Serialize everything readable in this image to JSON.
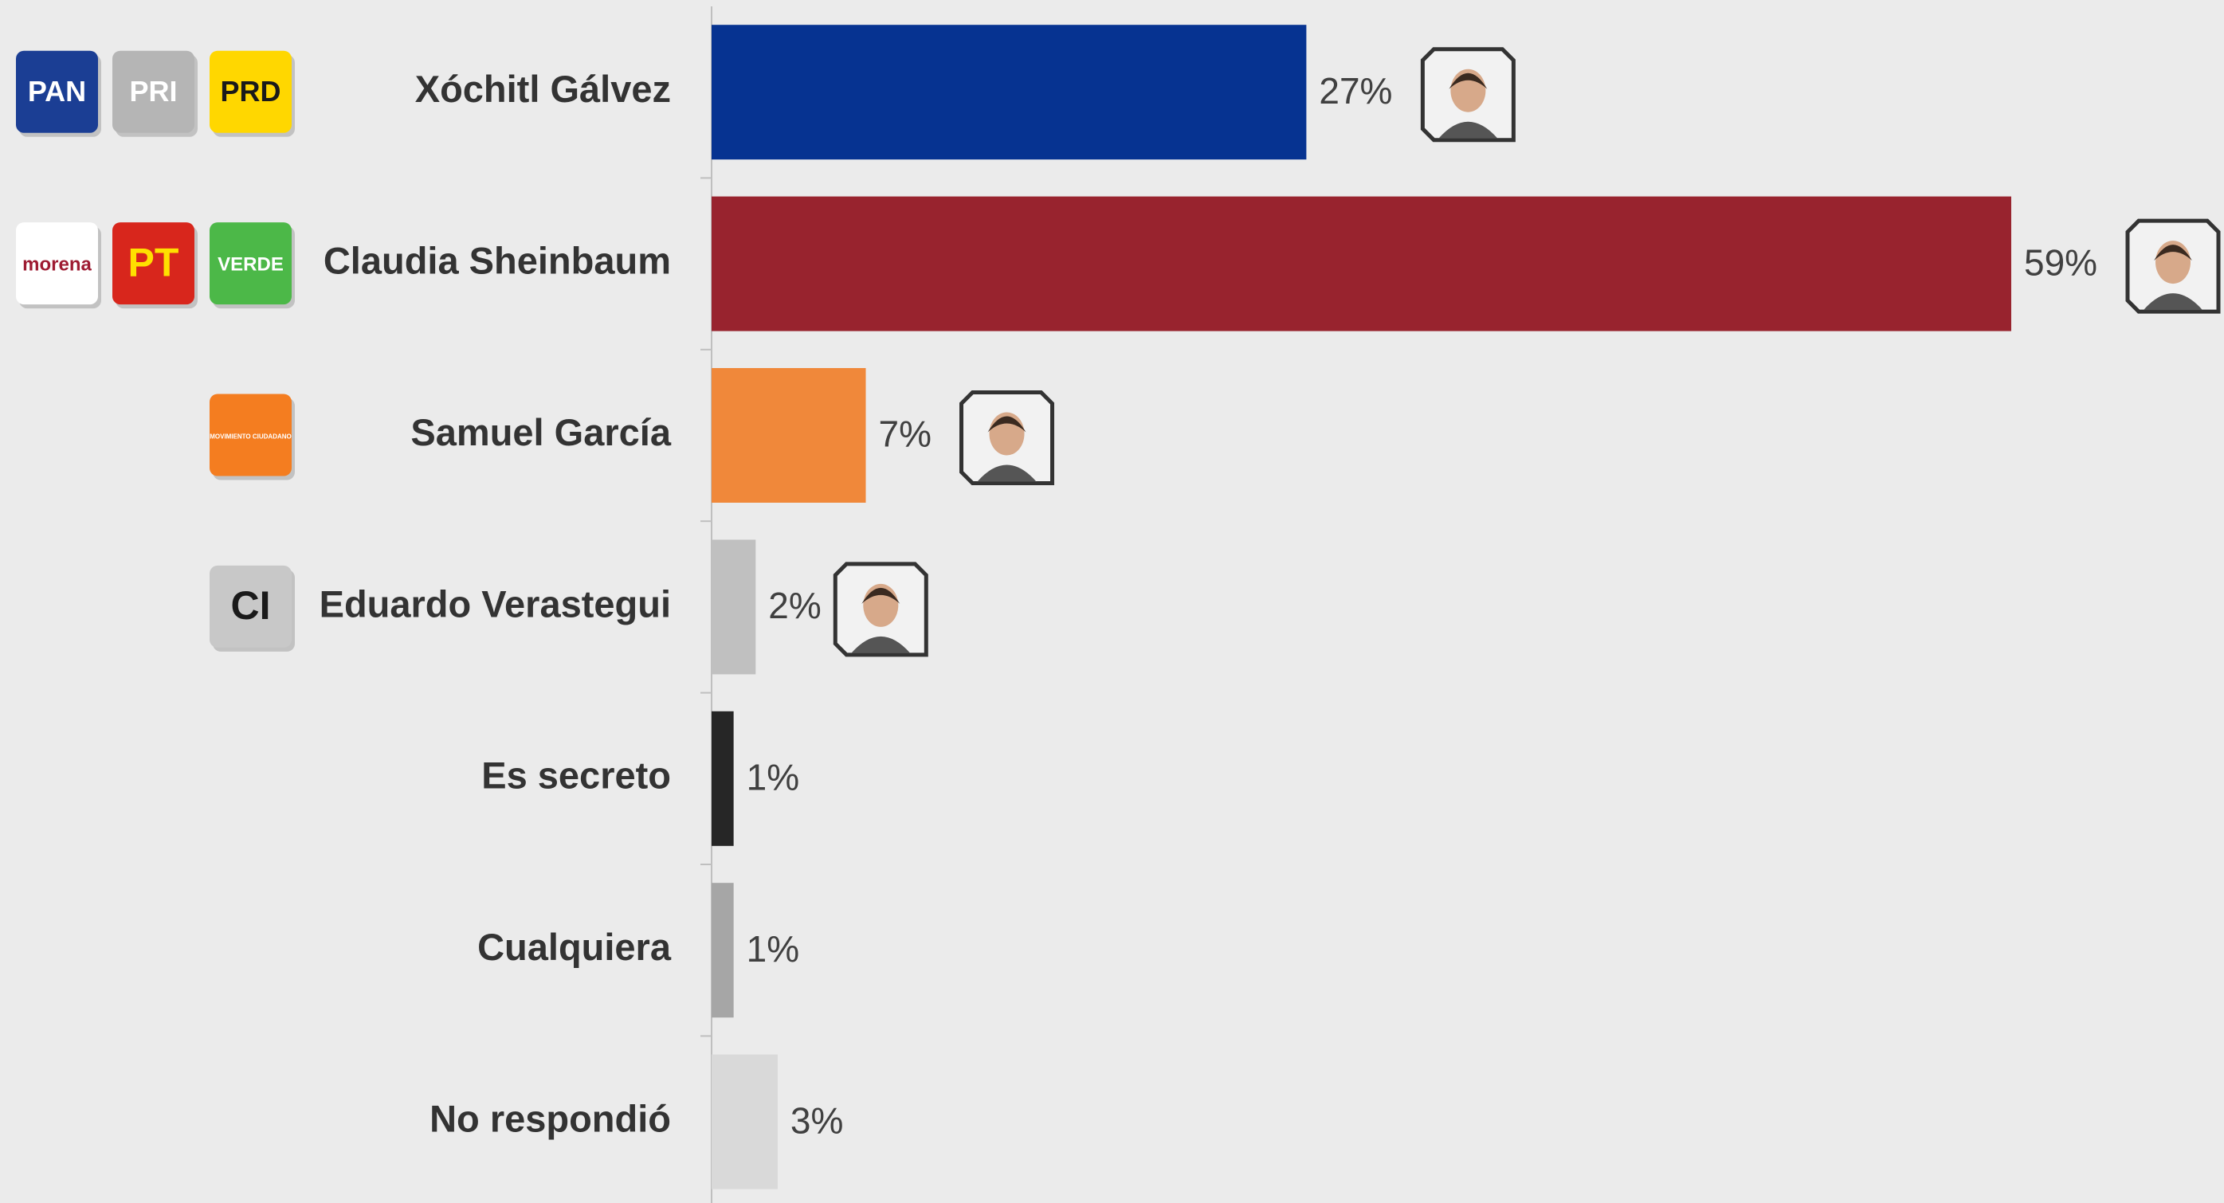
{
  "chart_data": {
    "type": "bar",
    "orientation": "horizontal",
    "categories": [
      "Xóchitl Gálvez",
      "Claudia Sheinbaum",
      "Samuel García",
      "Eduardo Verastegui",
      "Es secreto",
      "Cualquiera",
      "No respondió"
    ],
    "values": [
      27,
      59,
      7,
      2,
      1,
      1,
      3
    ],
    "value_labels": [
      "27%",
      "59%",
      "7%",
      "2%",
      "1%",
      "1%",
      "3%"
    ],
    "colors": [
      "#063391",
      "#98232e",
      "#f0883a",
      "#c0c0c0",
      "#262626",
      "#a6a6a6",
      "#d9d9d9"
    ],
    "party_logos": [
      [
        "PAN",
        "PRI",
        "PRD"
      ],
      [
        "morena",
        "PT",
        "VERDE"
      ],
      [
        "MOVIMIENTO CIUDADANO"
      ],
      [
        "CI"
      ],
      [],
      [],
      []
    ]
  }
}
